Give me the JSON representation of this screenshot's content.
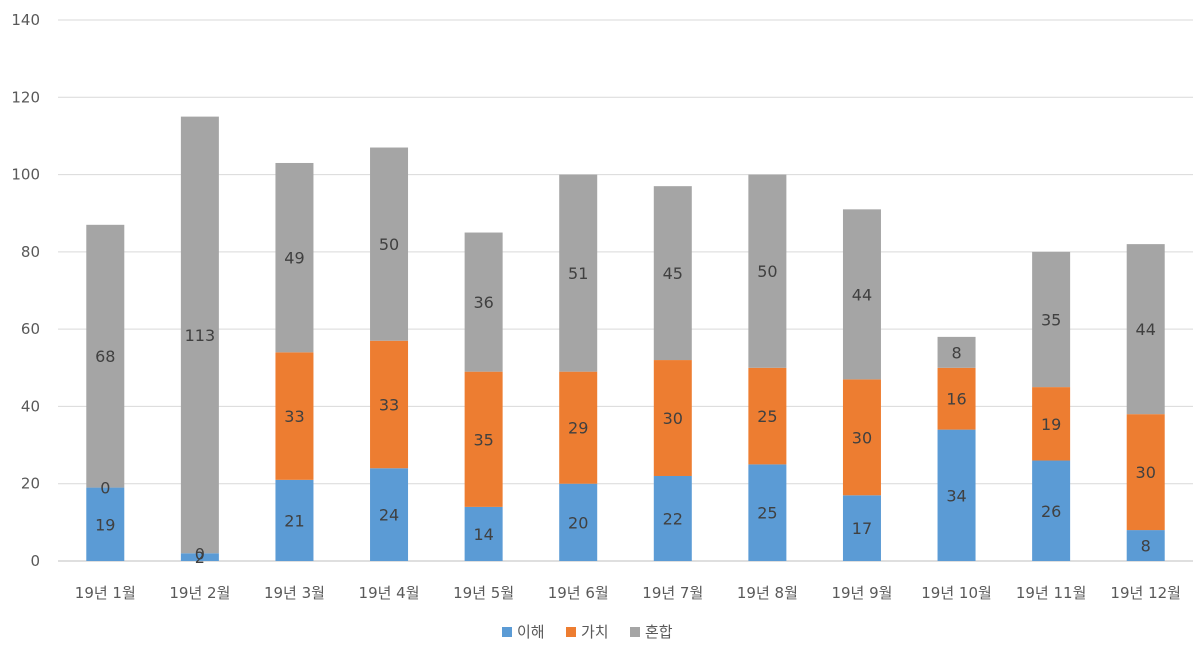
{
  "chart_data": {
    "type": "bar",
    "stacked": true,
    "categories": [
      "19년 1월",
      "19년 2월",
      "19년 3월",
      "19년 4월",
      "19년 5월",
      "19년 6월",
      "19년 7월",
      "19년 8월",
      "19년 9월",
      "19년 10월",
      "19년 11월",
      "19년 12월"
    ],
    "series": [
      {
        "name": "이해",
        "color": "#5B9BD5",
        "values": [
          19,
          2,
          21,
          24,
          14,
          20,
          22,
          25,
          17,
          34,
          26,
          8
        ]
      },
      {
        "name": "가치",
        "color": "#ED7D31",
        "values": [
          0,
          0,
          33,
          33,
          35,
          29,
          30,
          25,
          30,
          16,
          19,
          30
        ]
      },
      {
        "name": "혼합",
        "color": "#A5A5A5",
        "values": [
          68,
          113,
          49,
          50,
          36,
          51,
          45,
          50,
          44,
          8,
          35,
          44
        ]
      }
    ],
    "ylim": [
      0,
      140
    ],
    "yticks": [
      0,
      20,
      40,
      60,
      80,
      100,
      120,
      140
    ],
    "grid": true,
    "legend_position": "bottom",
    "title": "",
    "xlabel": "",
    "ylabel": ""
  }
}
